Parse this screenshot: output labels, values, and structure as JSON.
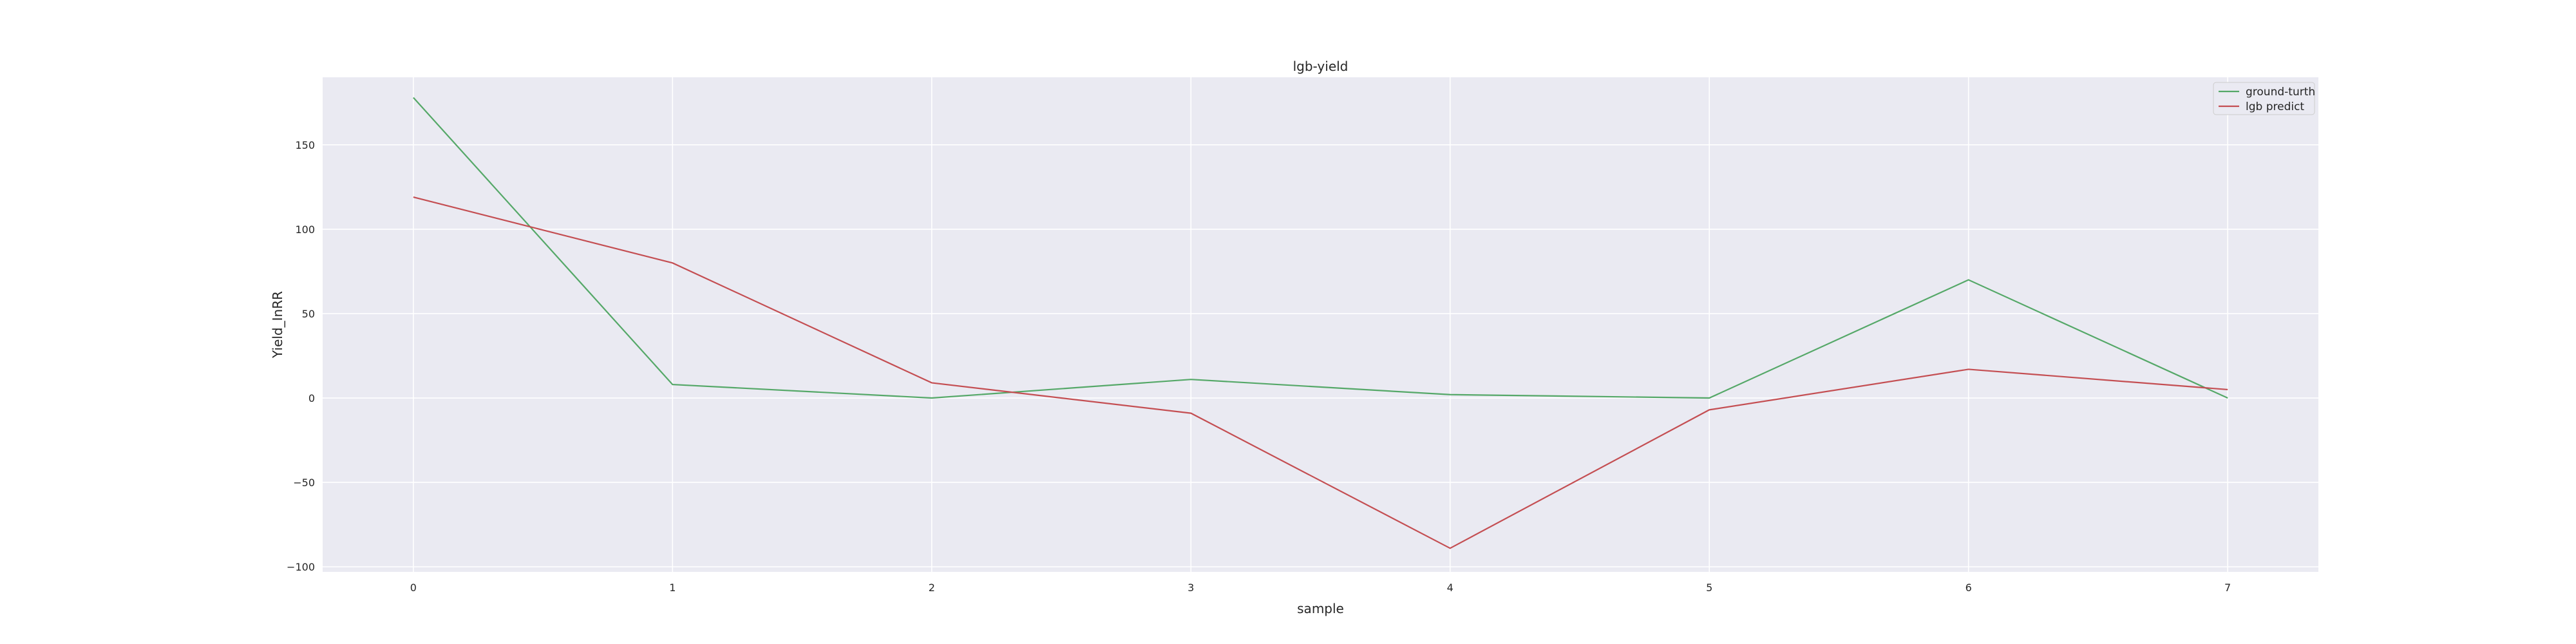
{
  "chart_data": {
    "type": "line",
    "title": "lgb-yield",
    "xlabel": "sample",
    "ylabel": "Yield_InRR",
    "x": [
      0,
      1,
      2,
      3,
      4,
      5,
      6,
      7
    ],
    "x_ticks": [
      "0",
      "1",
      "2",
      "3",
      "4",
      "5",
      "6",
      "7"
    ],
    "y_ticks": [
      "−100",
      "−50",
      "0",
      "50",
      "100",
      "150"
    ],
    "xlim": [
      -0.35,
      7.35
    ],
    "ylim": [
      -103,
      190
    ],
    "grid": true,
    "legend_position": "top-right",
    "background_color": "#eaeaf2",
    "series": [
      {
        "name": "ground-turth",
        "color": "#55a868",
        "values": [
          178,
          8,
          0,
          11,
          2,
          0,
          70,
          0
        ]
      },
      {
        "name": "lgb predict",
        "color": "#c44e52",
        "values": [
          119,
          80,
          9,
          -9,
          -89,
          -7,
          17,
          5
        ]
      }
    ]
  }
}
